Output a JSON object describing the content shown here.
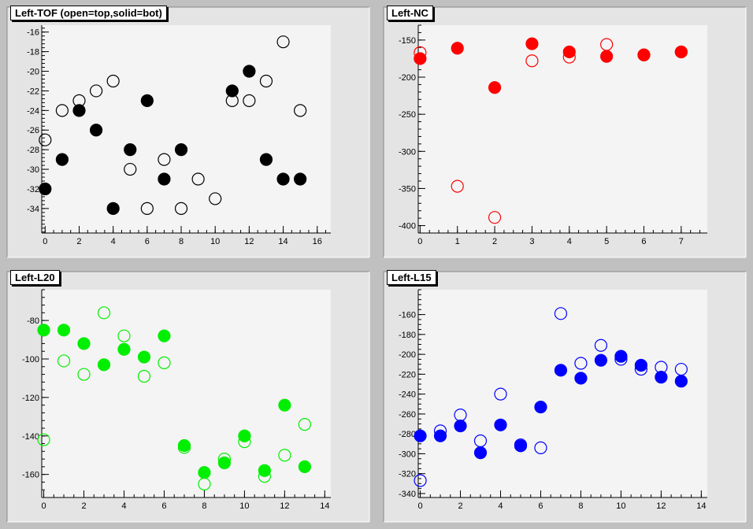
{
  "chart_data": [
    {
      "type": "scatter",
      "title": "Left-TOF (open=top,solid=bot)",
      "color": "#000000",
      "xlim": [
        -0.2,
        16.8
      ],
      "ylim": [
        -36.5,
        -15.3
      ],
      "xticks": [
        0,
        2,
        4,
        6,
        8,
        10,
        12,
        14,
        16
      ],
      "yticks": [
        -16,
        -18,
        -20,
        -22,
        -24,
        -26,
        -28,
        -30,
        -32,
        -34
      ],
      "xminor_step": 0.5,
      "yminor_step": 0.4,
      "series": [
        {
          "fill": "open",
          "points": [
            [
              0,
              -27
            ],
            [
              1,
              -24
            ],
            [
              2,
              -23
            ],
            [
              3,
              -22
            ],
            [
              4,
              -21
            ],
            [
              5,
              -30
            ],
            [
              6,
              -34
            ],
            [
              7,
              -29
            ],
            [
              8,
              -34
            ],
            [
              9,
              -31
            ],
            [
              10,
              -33
            ],
            [
              11,
              -23
            ],
            [
              12,
              -23
            ],
            [
              13,
              -21
            ],
            [
              14,
              -17
            ],
            [
              15,
              -24
            ]
          ]
        },
        {
          "fill": "solid",
          "points": [
            [
              0,
              -32
            ],
            [
              1,
              -29
            ],
            [
              2,
              -24
            ],
            [
              3,
              -26
            ],
            [
              4,
              -34
            ],
            [
              5,
              -28
            ],
            [
              6,
              -23
            ],
            [
              7,
              -31
            ],
            [
              8,
              -28
            ],
            [
              11,
              -22
            ],
            [
              12,
              -20
            ],
            [
              13,
              -29
            ],
            [
              14,
              -31
            ],
            [
              15,
              -31
            ]
          ]
        }
      ]
    },
    {
      "type": "scatter",
      "title": "Left-NC",
      "color": "#ff0000",
      "xlim": [
        -0.05,
        7.7
      ],
      "ylim": [
        -410,
        -130
      ],
      "xticks": [
        0,
        1,
        2,
        3,
        4,
        5,
        6,
        7
      ],
      "yticks": [
        -150,
        -200,
        -250,
        -300,
        -350,
        -400
      ],
      "xminor_step": 0.25,
      "yminor_step": 10,
      "series": [
        {
          "fill": "open",
          "points": [
            [
              0,
              -167
            ],
            [
              1,
              -347
            ],
            [
              2,
              -389
            ],
            [
              3,
              -178
            ],
            [
              4,
              -173
            ],
            [
              5,
              -156
            ],
            [
              6,
              -170
            ],
            [
              7,
              -166
            ]
          ]
        },
        {
          "fill": "solid",
          "points": [
            [
              0,
              -175
            ],
            [
              1,
              -161
            ],
            [
              2,
              -214
            ],
            [
              3,
              -155
            ],
            [
              4,
              -166
            ],
            [
              5,
              -172
            ],
            [
              6,
              -170
            ],
            [
              7,
              -166
            ]
          ]
        }
      ]
    },
    {
      "type": "scatter",
      "title": "Left-L20",
      "color": "#00ee00",
      "xlim": [
        -0.1,
        14.3
      ],
      "ylim": [
        -172,
        -64
      ],
      "xticks": [
        0,
        2,
        4,
        6,
        8,
        10,
        12,
        14
      ],
      "yticks": [
        -80,
        -100,
        -120,
        -140,
        -160
      ],
      "xminor_step": 0.5,
      "yminor_step": 4,
      "series": [
        {
          "fill": "open",
          "points": [
            [
              0,
              -142
            ],
            [
              1,
              -101
            ],
            [
              2,
              -108
            ],
            [
              3,
              -76
            ],
            [
              4,
              -88
            ],
            [
              5,
              -109
            ],
            [
              6,
              -102
            ],
            [
              7,
              -146
            ],
            [
              8,
              -165
            ],
            [
              9,
              -152
            ],
            [
              10,
              -143
            ],
            [
              11,
              -161
            ],
            [
              12,
              -150
            ],
            [
              13,
              -134
            ]
          ]
        },
        {
          "fill": "solid",
          "points": [
            [
              0,
              -85
            ],
            [
              1,
              -85
            ],
            [
              2,
              -92
            ],
            [
              3,
              -103
            ],
            [
              4,
              -95
            ],
            [
              5,
              -99
            ],
            [
              6,
              -88
            ],
            [
              7,
              -145
            ],
            [
              8,
              -159
            ],
            [
              9,
              -154
            ],
            [
              10,
              -140
            ],
            [
              11,
              -158
            ],
            [
              12,
              -124
            ],
            [
              13,
              -156
            ]
          ]
        }
      ]
    },
    {
      "type": "scatter",
      "title": "Left-L15",
      "color": "#0000ff",
      "xlim": [
        -0.1,
        14.3
      ],
      "ylim": [
        -344,
        -135
      ],
      "xticks": [
        0,
        2,
        4,
        6,
        8,
        10,
        12,
        14
      ],
      "yticks": [
        -160,
        -180,
        -200,
        -220,
        -240,
        -260,
        -280,
        -300,
        -320,
        -340
      ],
      "xminor_step": 0.5,
      "yminor_step": 5,
      "series": [
        {
          "fill": "open",
          "points": [
            [
              0,
              -327
            ],
            [
              1,
              -277
            ],
            [
              2,
              -261
            ],
            [
              3,
              -287
            ],
            [
              4,
              -240
            ],
            [
              5,
              -291
            ],
            [
              6,
              -294
            ],
            [
              7,
              -159
            ],
            [
              8,
              -209
            ],
            [
              9,
              -191
            ],
            [
              10,
              -205
            ],
            [
              11,
              -215
            ],
            [
              12,
              -213
            ],
            [
              13,
              -215
            ]
          ]
        },
        {
          "fill": "solid",
          "points": [
            [
              0,
              -282
            ],
            [
              1,
              -282
            ],
            [
              2,
              -272
            ],
            [
              3,
              -299
            ],
            [
              4,
              -271
            ],
            [
              5,
              -292
            ],
            [
              6,
              -253
            ],
            [
              7,
              -216
            ],
            [
              8,
              -224
            ],
            [
              9,
              -206
            ],
            [
              10,
              -202
            ],
            [
              11,
              -211
            ],
            [
              12,
              -223
            ],
            [
              13,
              -227
            ]
          ]
        }
      ]
    }
  ]
}
